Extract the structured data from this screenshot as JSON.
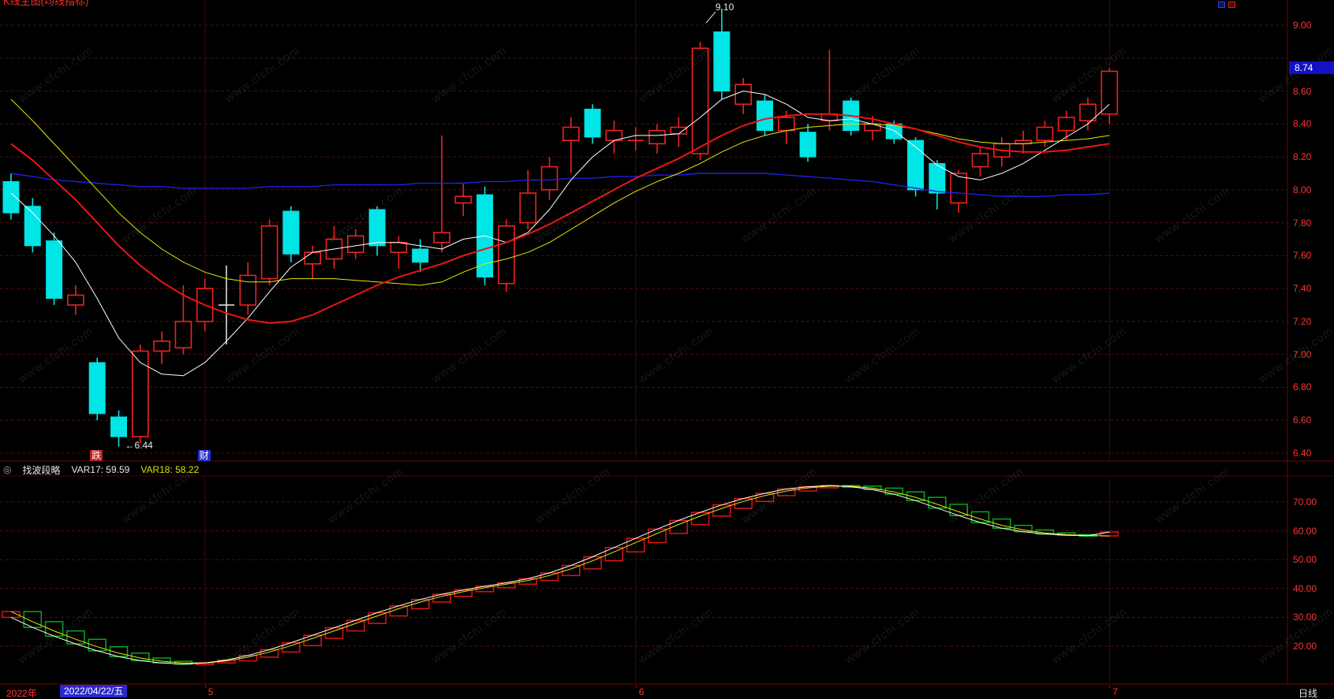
{
  "app": {
    "clipped_title": "K线主图(均线指标)",
    "watermark": "www.cfchi.com"
  },
  "indicator_header": {
    "icon": "◎",
    "name": "找波段略",
    "var17": "VAR17: 59.59",
    "var18": "VAR18: 58.22"
  },
  "price_axis": {
    "last_price": "8.74",
    "badge_bg": "#1212c4"
  },
  "annotations": {
    "high": "9.10",
    "low": "←6.44"
  },
  "event_markers": [
    {
      "label": "跌",
      "bar": 4,
      "bg": "#bb2222",
      "fg": "#ffffff"
    },
    {
      "label": "财",
      "bar": 9,
      "bg": "#2233cc",
      "fg": "#ffffff"
    }
  ],
  "date_axis": {
    "year_label": "2022年",
    "selected_date": "2022/04/22/五",
    "month_ticks": [
      {
        "label": "5",
        "bar": 9
      },
      {
        "label": "6",
        "bar": 29
      },
      {
        "label": "7",
        "bar": 51
      }
    ],
    "period_label": "日线"
  },
  "chart_data": [
    {
      "type": "candlestick",
      "title": "",
      "period": "daily",
      "y_axis": {
        "min": 6.4,
        "max": 9.0,
        "step": 0.2,
        "tick_values": [
          9.0,
          8.6,
          8.4,
          8.2,
          8.0,
          7.8,
          7.6,
          7.4,
          7.2,
          7.0,
          6.8,
          6.6,
          6.4
        ],
        "tick_labels": [
          "9.00",
          "8.60",
          "8.40",
          "8.20",
          "8.00",
          "7.80",
          "7.60",
          "7.40",
          "7.20",
          "7.00",
          "6.80",
          "6.60",
          "6.40"
        ]
      },
      "high_point": {
        "bar": 33,
        "price": 9.1
      },
      "low_point": {
        "bar": 5,
        "price": 6.44
      },
      "last_price": 8.74,
      "up_color": "#ee2222",
      "down_color": "#00e5e5",
      "ohlc": [
        [
          8.05,
          8.1,
          7.82,
          7.86
        ],
        [
          7.9,
          7.95,
          7.62,
          7.66
        ],
        [
          7.69,
          7.74,
          7.3,
          7.34
        ],
        [
          7.3,
          7.42,
          7.24,
          7.36
        ],
        [
          6.95,
          6.98,
          6.6,
          6.64
        ],
        [
          6.62,
          6.66,
          6.44,
          6.5
        ],
        [
          6.5,
          7.06,
          6.46,
          7.02
        ],
        [
          7.02,
          7.14,
          6.94,
          7.08
        ],
        [
          7.04,
          7.42,
          7.0,
          7.2
        ],
        [
          7.2,
          7.46,
          7.14,
          7.4
        ],
        [
          7.28,
          7.54,
          7.06,
          7.3
        ],
        [
          7.3,
          7.56,
          7.24,
          7.48
        ],
        [
          7.46,
          7.82,
          7.42,
          7.78
        ],
        [
          7.87,
          7.9,
          7.56,
          7.61
        ],
        [
          7.55,
          7.66,
          7.46,
          7.62
        ],
        [
          7.58,
          7.78,
          7.52,
          7.7
        ],
        [
          7.62,
          7.76,
          7.58,
          7.72
        ],
        [
          7.88,
          7.9,
          7.6,
          7.66
        ],
        [
          7.62,
          7.72,
          7.52,
          7.68
        ],
        [
          7.64,
          7.7,
          7.5,
          7.56
        ],
        [
          7.68,
          8.33,
          7.62,
          7.74
        ],
        [
          7.92,
          8.04,
          7.84,
          7.96
        ],
        [
          7.97,
          8.02,
          7.42,
          7.47
        ],
        [
          7.43,
          7.82,
          7.38,
          7.78
        ],
        [
          7.8,
          8.12,
          7.76,
          7.98
        ],
        [
          8.0,
          8.2,
          7.94,
          8.14
        ],
        [
          8.3,
          8.44,
          8.1,
          8.38
        ],
        [
          8.49,
          8.52,
          8.28,
          8.32
        ],
        [
          8.3,
          8.42,
          8.22,
          8.36
        ],
        [
          8.32,
          8.38,
          8.24,
          8.3
        ],
        [
          8.28,
          8.4,
          8.22,
          8.36
        ],
        [
          8.34,
          8.44,
          8.26,
          8.38
        ],
        [
          8.22,
          8.9,
          8.18,
          8.86
        ],
        [
          8.96,
          9.1,
          8.55,
          8.6
        ],
        [
          8.52,
          8.68,
          8.46,
          8.64
        ],
        [
          8.54,
          8.58,
          8.33,
          8.36
        ],
        [
          8.36,
          8.48,
          8.28,
          8.44
        ],
        [
          8.35,
          8.4,
          8.17,
          8.2
        ],
        [
          8.42,
          8.85,
          8.36,
          8.46
        ],
        [
          8.54,
          8.56,
          8.33,
          8.36
        ],
        [
          8.36,
          8.45,
          8.3,
          8.4
        ],
        [
          8.4,
          8.42,
          8.28,
          8.31
        ],
        [
          8.3,
          8.32,
          7.96,
          8.0
        ],
        [
          8.16,
          8.18,
          7.88,
          7.98
        ],
        [
          7.92,
          8.12,
          7.86,
          8.1
        ],
        [
          8.14,
          8.26,
          8.08,
          8.22
        ],
        [
          8.2,
          8.32,
          8.14,
          8.28
        ],
        [
          8.28,
          8.36,
          8.22,
          8.3
        ],
        [
          8.3,
          8.42,
          8.26,
          8.38
        ],
        [
          8.36,
          8.48,
          8.3,
          8.44
        ],
        [
          8.42,
          8.56,
          8.36,
          8.52
        ],
        [
          8.46,
          8.74,
          8.4,
          8.72
        ]
      ],
      "overlays": [
        {
          "name": "ma-fast-white",
          "color": "#ffffff",
          "width": 1,
          "values": [
            7.98,
            7.86,
            7.72,
            7.56,
            7.34,
            7.1,
            6.95,
            6.88,
            6.87,
            6.95,
            7.08,
            7.22,
            7.38,
            7.53,
            7.62,
            7.64,
            7.66,
            7.68,
            7.68,
            7.66,
            7.64,
            7.7,
            7.72,
            7.68,
            7.74,
            7.88,
            8.06,
            8.2,
            8.3,
            8.33,
            8.33,
            8.34,
            8.44,
            8.55,
            8.6,
            8.58,
            8.52,
            8.44,
            8.42,
            8.43,
            8.4,
            8.36,
            8.26,
            8.15,
            8.08,
            8.06,
            8.1,
            8.16,
            8.24,
            8.32,
            8.4,
            8.52
          ]
        },
        {
          "name": "ma-mid-yellow",
          "color": "#e8e800",
          "width": 1,
          "values": [
            8.55,
            8.42,
            8.28,
            8.14,
            8.0,
            7.86,
            7.74,
            7.64,
            7.56,
            7.5,
            7.46,
            7.44,
            7.44,
            7.46,
            7.46,
            7.46,
            7.45,
            7.44,
            7.43,
            7.42,
            7.44,
            7.5,
            7.55,
            7.58,
            7.62,
            7.68,
            7.76,
            7.84,
            7.92,
            7.99,
            8.05,
            8.1,
            8.16,
            8.23,
            8.29,
            8.33,
            8.36,
            8.38,
            8.39,
            8.4,
            8.4,
            8.39,
            8.37,
            8.34,
            8.31,
            8.29,
            8.28,
            8.28,
            8.29,
            8.3,
            8.31,
            8.33
          ]
        },
        {
          "name": "ma-slow-red",
          "color": "#ee1515",
          "width": 2,
          "values": [
            8.28,
            8.18,
            8.06,
            7.94,
            7.8,
            7.66,
            7.54,
            7.44,
            7.36,
            7.3,
            7.25,
            7.21,
            7.19,
            7.2,
            7.24,
            7.3,
            7.36,
            7.42,
            7.47,
            7.51,
            7.55,
            7.6,
            7.64,
            7.68,
            7.73,
            7.79,
            7.86,
            7.93,
            8.0,
            8.07,
            8.13,
            8.19,
            8.26,
            8.33,
            8.39,
            8.43,
            8.45,
            8.46,
            8.46,
            8.45,
            8.43,
            8.4,
            8.37,
            8.33,
            8.29,
            8.26,
            8.24,
            8.23,
            8.23,
            8.24,
            8.26,
            8.28
          ]
        },
        {
          "name": "ma-long-blue",
          "color": "#2020e0",
          "width": 1.4,
          "values": [
            8.1,
            8.08,
            8.06,
            8.05,
            8.04,
            8.03,
            8.02,
            8.02,
            8.01,
            8.01,
            8.01,
            8.01,
            8.02,
            8.02,
            8.02,
            8.03,
            8.03,
            8.03,
            8.03,
            8.04,
            8.04,
            8.04,
            8.05,
            8.05,
            8.06,
            8.06,
            8.07,
            8.07,
            8.08,
            8.08,
            8.09,
            8.09,
            8.1,
            8.1,
            8.1,
            8.1,
            8.09,
            8.08,
            8.07,
            8.06,
            8.05,
            8.03,
            8.01,
            7.99,
            7.98,
            7.97,
            7.96,
            7.96,
            7.96,
            7.97,
            7.97,
            7.98
          ]
        }
      ]
    },
    {
      "type": "wave-band-indicator",
      "name": "找波段略",
      "y_axis": {
        "grid_values": [
          70,
          60,
          50,
          40,
          30,
          20
        ],
        "tick_labels": [
          "70.00",
          "60.00",
          "50.00",
          "40.00",
          "30.00",
          "20.00"
        ]
      },
      "up_color": "#dd1515",
      "down_color": "#00aa22",
      "var17": {
        "color": "#ffffff",
        "last": 59.59,
        "values": [
          30,
          26.5,
          23.5,
          20.8,
          18.4,
          16.4,
          15,
          14.2,
          13.8,
          14.2,
          15.2,
          16.8,
          18.8,
          21.2,
          23.8,
          26.4,
          29,
          31.6,
          34,
          36.2,
          38,
          39.5,
          40.8,
          42,
          43.4,
          45.4,
          48,
          51,
          54.2,
          57.4,
          60.6,
          63.6,
          66.4,
          69,
          71.2,
          73,
          74.5,
          75.3,
          75.7,
          75.3,
          74.3,
          72.7,
          70.5,
          67.9,
          65.3,
          62.9,
          60.9,
          59.7,
          58.9,
          58.5,
          58.3,
          59.59
        ]
      },
      "var18": {
        "color": "#e8e800",
        "last": 58.22,
        "values": [
          32,
          28.5,
          25.3,
          22.4,
          19.8,
          17.6,
          15.9,
          14.8,
          14.2,
          14.2,
          14.9,
          16.2,
          18,
          20.2,
          22.7,
          25.3,
          27.9,
          30.5,
          33,
          35.3,
          37.3,
          38.9,
          40.3,
          41.5,
          42.8,
          44.5,
          46.8,
          49.6,
          52.7,
          55.9,
          59.1,
          62.2,
          65.1,
          67.8,
          70.2,
          72.2,
          73.8,
          74.9,
          75.5,
          75.5,
          74.8,
          73.5,
          71.6,
          69.2,
          66.6,
          64.1,
          61.9,
          60.3,
          59.3,
          58.7,
          58.4,
          58.22
        ]
      }
    }
  ]
}
